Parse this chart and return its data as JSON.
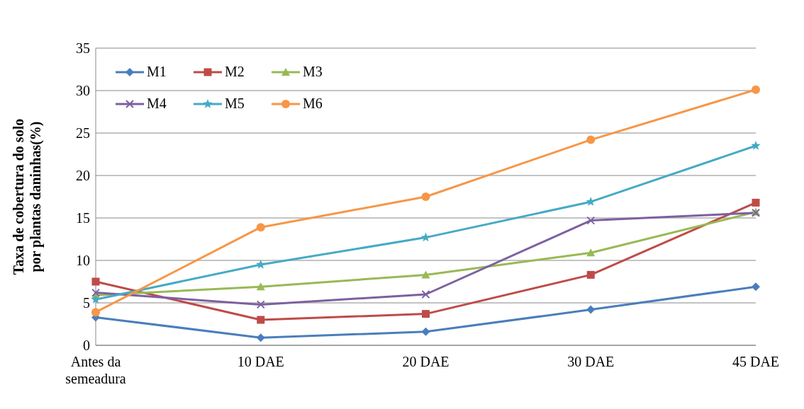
{
  "chart_data": {
    "type": "line",
    "ylabel": "Taxa de cobertura do solo por plantas daninhas(%)",
    "categories": [
      "Antes da semeadura",
      "10 DAE",
      "20 DAE",
      "30 DAE",
      "45 DAE"
    ],
    "ylim": [
      0,
      35
    ],
    "yticks": [
      0,
      5,
      10,
      15,
      20,
      25,
      30,
      35
    ],
    "grid": "y",
    "legend": "top left",
    "series": [
      {
        "name": "M1",
        "color": "#4a7ebb",
        "marker": "diamond",
        "values": [
          3.3,
          0.9,
          1.6,
          4.2,
          6.9
        ]
      },
      {
        "name": "M2",
        "color": "#be4b48",
        "marker": "square",
        "values": [
          7.5,
          3.0,
          3.7,
          8.3,
          16.8
        ]
      },
      {
        "name": "M3",
        "color": "#98b954",
        "marker": "triangle",
        "values": [
          5.9,
          6.9,
          8.3,
          10.9,
          15.7
        ]
      },
      {
        "name": "M4",
        "color": "#7d60a0",
        "marker": "cross",
        "values": [
          6.2,
          4.8,
          6.0,
          14.7,
          15.6
        ]
      },
      {
        "name": "M5",
        "color": "#46aac5",
        "marker": "star",
        "values": [
          5.4,
          9.5,
          12.7,
          16.9,
          23.5
        ]
      },
      {
        "name": "M6",
        "color": "#f79646",
        "marker": "circle",
        "values": [
          3.9,
          13.9,
          17.5,
          24.2,
          30.1
        ]
      }
    ]
  }
}
